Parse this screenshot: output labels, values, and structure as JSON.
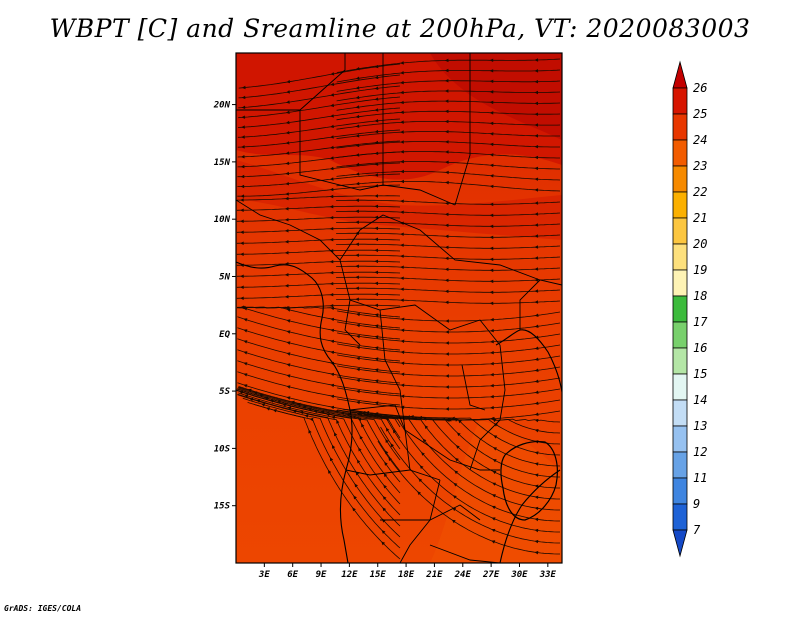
{
  "title": "WBPT [C] and Sreamline at 200hPa, VT: 2020083003",
  "credit": "GrADS: IGES/COLA",
  "map": {
    "lat_labels": [
      "20N",
      "15N",
      "10N",
      "5N",
      "EQ",
      "5S",
      "10S",
      "15S"
    ],
    "lat_values": [
      20,
      15,
      10,
      5,
      0,
      -5,
      -10,
      -15
    ],
    "lon_labels": [
      "3E",
      "6E",
      "9E",
      "12E",
      "15E",
      "18E",
      "21E",
      "24E",
      "27E",
      "30E",
      "33E"
    ],
    "lon_values": [
      3,
      6,
      9,
      12,
      15,
      18,
      21,
      24,
      27,
      30,
      33
    ],
    "lon_range": [
      0,
      34.5
    ],
    "lat_range": [
      -20,
      24.5
    ]
  },
  "colorbar": {
    "labels": [
      "26",
      "25",
      "24",
      "23",
      "22",
      "21",
      "20",
      "19",
      "18",
      "17",
      "16",
      "15",
      "14",
      "13",
      "12",
      "11",
      "9",
      "7"
    ],
    "colors": [
      "#c30000",
      "#d71500",
      "#e83700",
      "#f25c00",
      "#f68a00",
      "#fbb000",
      "#fcc640",
      "#fde07d",
      "#fef3b5",
      "#3cbb3c",
      "#78d06c",
      "#b4e6a6",
      "#e3f6f2",
      "#c3ddf5",
      "#96c1f0",
      "#67a2e6",
      "#3f85e0",
      "#1e62d6",
      "#1449c7"
    ]
  }
}
